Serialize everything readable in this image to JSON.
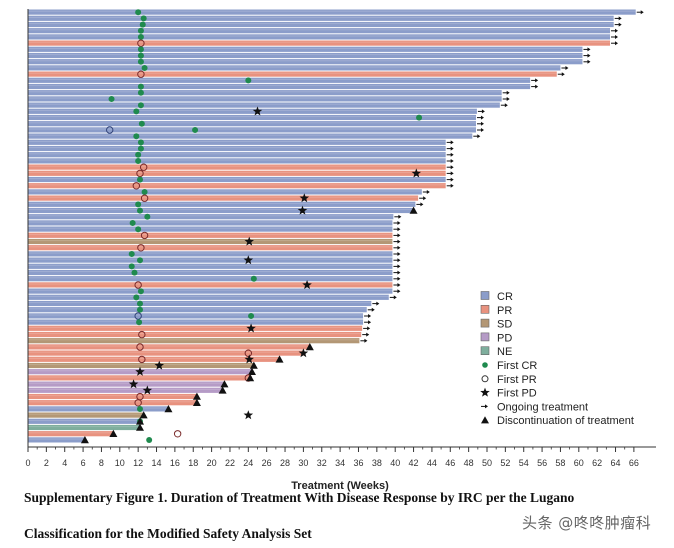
{
  "chart_data": {
    "type": "swimmer",
    "xlabel": "Treatment (Weeks)",
    "xlim": [
      0,
      66
    ],
    "xticks": [
      0,
      2,
      4,
      6,
      8,
      10,
      12,
      14,
      16,
      18,
      20,
      22,
      24,
      26,
      28,
      30,
      32,
      34,
      36,
      38,
      40,
      42,
      44,
      46,
      48,
      50,
      52,
      54,
      56,
      58,
      60,
      62,
      64,
      66
    ],
    "colors": {
      "CR": "#8b9dca",
      "PR": "#e8927f",
      "SD": "#b39775",
      "PD": "#b59bc6",
      "NE": "#7eae9d",
      "green": "#1f8a4e"
    },
    "legend_position": "right-lower",
    "legend": [
      {
        "key": "CR",
        "label": "CR",
        "kind": "swatch"
      },
      {
        "key": "PR",
        "label": "PR",
        "kind": "swatch"
      },
      {
        "key": "SD",
        "label": "SD",
        "kind": "swatch"
      },
      {
        "key": "PD",
        "label": "PD",
        "kind": "swatch"
      },
      {
        "key": "NE",
        "label": "NE",
        "kind": "swatch"
      },
      {
        "key": "cr",
        "label": "First CR",
        "kind": "marker"
      },
      {
        "key": "pr",
        "label": "First PR",
        "kind": "marker"
      },
      {
        "key": "pd",
        "label": "First PD",
        "kind": "marker"
      },
      {
        "key": "ongoing",
        "label": "Ongoing treatment",
        "kind": "marker"
      },
      {
        "key": "disc",
        "label": "Discontinuation of treatment",
        "kind": "marker"
      }
    ],
    "rows": [
      [
        "CR",
        66.2,
        "ongoing",
        [
          [
            "cr",
            12.0
          ]
        ]
      ],
      [
        "CR",
        63.8,
        "ongoing",
        [
          [
            "cr",
            12.6
          ]
        ]
      ],
      [
        "CR",
        63.8,
        "ongoing",
        [
          [
            "cr",
            12.5
          ]
        ]
      ],
      [
        "CR",
        63.4,
        "ongoing",
        [
          [
            "cr",
            12.3
          ]
        ]
      ],
      [
        "CR",
        63.4,
        "ongoing",
        [
          [
            "cr",
            12.3
          ]
        ]
      ],
      [
        "PR",
        63.4,
        "ongoing",
        [
          [
            "pr",
            12.3
          ]
        ]
      ],
      [
        "CR",
        60.4,
        "ongoing",
        [
          [
            "cr",
            12.3
          ]
        ]
      ],
      [
        "CR",
        60.4,
        "ongoing",
        [
          [
            "cr",
            12.3
          ]
        ]
      ],
      [
        "CR",
        60.4,
        "ongoing",
        [
          [
            "cr",
            12.3
          ]
        ]
      ],
      [
        "CR",
        58.0,
        "ongoing",
        [
          [
            "cr",
            12.7
          ]
        ]
      ],
      [
        "PR",
        57.6,
        "ongoing",
        [
          [
            "pr",
            12.3
          ]
        ]
      ],
      [
        "CR",
        54.7,
        "ongoing",
        [
          [
            "cr",
            24.0
          ]
        ]
      ],
      [
        "CR",
        54.7,
        "ongoing",
        [
          [
            "cr",
            12.3
          ]
        ]
      ],
      [
        "CR",
        51.6,
        "ongoing",
        [
          [
            "cr",
            12.3
          ]
        ]
      ],
      [
        "CR",
        51.6,
        "ongoing",
        [
          [
            "cr",
            9.1
          ]
        ]
      ],
      [
        "CR",
        51.4,
        "ongoing",
        [
          [
            "cr",
            12.3
          ]
        ]
      ],
      [
        "CR",
        48.9,
        "ongoing",
        [
          [
            "cr",
            11.8
          ],
          [
            "pd",
            25.0
          ]
        ]
      ],
      [
        "CR",
        48.8,
        "ongoing",
        [
          [
            "cr",
            42.6
          ]
        ]
      ],
      [
        "CR",
        48.8,
        "ongoing",
        [
          [
            "cr",
            12.4
          ]
        ]
      ],
      [
        "CR",
        48.8,
        "ongoing",
        [
          [
            "pr",
            8.9
          ],
          [
            "cr",
            18.2
          ]
        ]
      ],
      [
        "CR",
        48.4,
        "ongoing",
        [
          [
            "cr",
            11.8
          ]
        ]
      ],
      [
        "CR",
        45.5,
        "ongoing",
        [
          [
            "cr",
            12.3
          ]
        ]
      ],
      [
        "CR",
        45.5,
        "ongoing",
        [
          [
            "cr",
            12.3
          ]
        ]
      ],
      [
        "CR",
        45.5,
        "ongoing",
        [
          [
            "cr",
            12.0
          ]
        ]
      ],
      [
        "CR",
        45.5,
        "ongoing",
        [
          [
            "cr",
            12.0
          ]
        ]
      ],
      [
        "PR",
        45.5,
        "ongoing",
        [
          [
            "pr",
            12.6
          ]
        ]
      ],
      [
        "PR",
        45.5,
        "ongoing",
        [
          [
            "pr",
            12.2
          ],
          [
            "pd",
            42.3
          ]
        ]
      ],
      [
        "CR",
        45.5,
        "ongoing",
        [
          [
            "cr",
            12.2
          ]
        ]
      ],
      [
        "PR",
        45.5,
        "ongoing",
        [
          [
            "pr",
            11.8
          ]
        ]
      ],
      [
        "CR",
        42.9,
        "ongoing",
        [
          [
            "cr",
            12.7
          ]
        ]
      ],
      [
        "PR",
        42.5,
        "ongoing",
        [
          [
            "pr",
            12.7
          ],
          [
            "pd",
            30.1
          ]
        ]
      ],
      [
        "CR",
        42.2,
        "ongoing",
        [
          [
            "cr",
            12.0
          ]
        ]
      ],
      [
        "CR",
        42.0,
        "disc",
        [
          [
            "cr",
            12.2
          ],
          [
            "pd",
            29.9
          ]
        ]
      ],
      [
        "CR",
        39.8,
        "ongoing",
        [
          [
            "cr",
            13.0
          ]
        ]
      ],
      [
        "CR",
        39.7,
        "ongoing",
        [
          [
            "cr",
            11.4
          ]
        ]
      ],
      [
        "CR",
        39.7,
        "ongoing",
        [
          [
            "cr",
            12.0
          ]
        ]
      ],
      [
        "PR",
        39.7,
        "ongoing",
        [
          [
            "pr",
            12.7
          ]
        ]
      ],
      [
        "SD",
        39.7,
        "ongoing",
        [
          [
            "pd",
            24.1
          ]
        ]
      ],
      [
        "PR",
        39.7,
        "ongoing",
        [
          [
            "pr",
            12.3
          ]
        ]
      ],
      [
        "CR",
        39.7,
        "ongoing",
        [
          [
            "cr",
            11.3
          ]
        ]
      ],
      [
        "CR",
        39.7,
        "ongoing",
        [
          [
            "cr",
            12.2
          ],
          [
            "pd",
            24.0
          ]
        ]
      ],
      [
        "CR",
        39.7,
        "ongoing",
        [
          [
            "cr",
            11.3
          ]
        ]
      ],
      [
        "CR",
        39.7,
        "ongoing",
        [
          [
            "cr",
            11.6
          ]
        ]
      ],
      [
        "CR",
        39.7,
        "ongoing",
        [
          [
            "cr",
            24.6
          ]
        ]
      ],
      [
        "PR",
        39.7,
        "ongoing",
        [
          [
            "pr",
            12.0
          ],
          [
            "pd",
            30.4
          ]
        ]
      ],
      [
        "CR",
        39.7,
        "ongoing",
        [
          [
            "cr",
            12.3
          ]
        ]
      ],
      [
        "CR",
        39.3,
        "ongoing",
        [
          [
            "cr",
            11.8
          ]
        ]
      ],
      [
        "CR",
        37.4,
        "ongoing",
        [
          [
            "cr",
            12.2
          ]
        ]
      ],
      [
        "CR",
        36.9,
        "ongoing",
        [
          [
            "cr",
            12.2
          ]
        ]
      ],
      [
        "CR",
        36.5,
        "ongoing",
        [
          [
            "pr",
            12.0
          ],
          [
            "cr",
            24.3
          ]
        ]
      ],
      [
        "CR",
        36.5,
        "ongoing",
        [
          [
            "cr",
            12.1
          ]
        ]
      ],
      [
        "PR",
        36.4,
        "ongoing",
        [
          [
            "pd",
            24.3
          ]
        ]
      ],
      [
        "PR",
        36.3,
        "ongoing",
        [
          [
            "pr",
            12.4
          ]
        ]
      ],
      [
        "SD",
        36.1,
        "ongoing",
        []
      ],
      [
        "PR",
        30.7,
        "disc",
        [
          [
            "pr",
            12.2
          ]
        ]
      ],
      [
        "PR",
        30.0,
        "none",
        [
          [
            "pr",
            24.0
          ],
          [
            "pd",
            30.0
          ]
        ]
      ],
      [
        "PR",
        27.4,
        "disc",
        [
          [
            "pr",
            12.4
          ],
          [
            "pd",
            24.1
          ]
        ]
      ],
      [
        "SD",
        24.6,
        "disc",
        [
          [
            "pd",
            14.3
          ]
        ]
      ],
      [
        "PD",
        24.4,
        "disc",
        [
          [
            "pd",
            12.2
          ]
        ]
      ],
      [
        "PR",
        24.2,
        "disc",
        [
          [
            "pr",
            24.0
          ]
        ]
      ],
      [
        "PD",
        21.4,
        "disc",
        [
          [
            "pd",
            11.5
          ]
        ]
      ],
      [
        "PD",
        21.2,
        "disc",
        [
          [
            "pd",
            13.0
          ]
        ]
      ],
      [
        "PR",
        18.4,
        "disc",
        [
          [
            "pr",
            12.2
          ]
        ]
      ],
      [
        "PR",
        18.4,
        "disc",
        [
          [
            "pr",
            12.0
          ]
        ]
      ],
      [
        "CR",
        15.3,
        "disc",
        [
          [
            "cr",
            12.2
          ]
        ]
      ],
      [
        "SD",
        12.6,
        "disc",
        [
          [
            "pd",
            24.0
          ]
        ]
      ],
      [
        "CR",
        12.2,
        "disc",
        [
          [
            "cr",
            12.2
          ]
        ]
      ],
      [
        "NE",
        12.2,
        "disc",
        []
      ],
      [
        "PR",
        9.3,
        "disc",
        [
          [
            "pr",
            16.3
          ]
        ]
      ],
      [
        "CR",
        6.2,
        "disc",
        [
          [
            "cr",
            13.2
          ]
        ]
      ]
    ]
  },
  "caption": {
    "line1": "Supplementary Figure 1. Duration of Treatment With Disease Response by IRC per the Lugano",
    "line2": "Classification for the Modified Safety Analysis Set"
  },
  "watermark": "头条 @咚咚肿瘤科"
}
